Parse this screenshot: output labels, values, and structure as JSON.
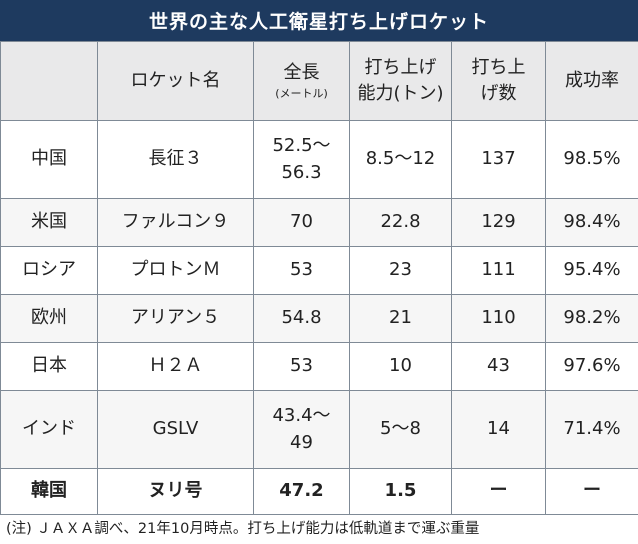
{
  "title": "世界の主な人工衛星打ち上げロケット",
  "headers": {
    "country": "",
    "rocket": "ロケット名",
    "length_l1": "全長",
    "length_l2": "(メートル)",
    "capacity_l1": "打ち上げ",
    "capacity_l2": "能力(トン)",
    "launches_l1": "打ち上",
    "launches_l2": "げ数",
    "success": "成功率"
  },
  "rows": [
    {
      "country": "中国",
      "rocket": "長征３",
      "length_l1": "52.5～",
      "length_l2": "56.3",
      "capacity": "8.5～12",
      "launches": "137",
      "success": "98.5%"
    },
    {
      "country": "米国",
      "rocket": "ファルコン９",
      "length_l1": "70",
      "length_l2": "",
      "capacity": "22.8",
      "launches": "129",
      "success": "98.4%"
    },
    {
      "country": "ロシア",
      "rocket": "プロトンＭ",
      "length_l1": "53",
      "length_l2": "",
      "capacity": "23",
      "launches": "111",
      "success": "95.4%"
    },
    {
      "country": "欧州",
      "rocket": "アリアン５",
      "length_l1": "54.8",
      "length_l2": "",
      "capacity": "21",
      "launches": "110",
      "success": "98.2%"
    },
    {
      "country": "日本",
      "rocket": "Ｈ２Ａ",
      "length_l1": "53",
      "length_l2": "",
      "capacity": "10",
      "launches": "43",
      "success": "97.6%"
    },
    {
      "country": "インド",
      "rocket": "GSLV",
      "length_l1": "43.4～",
      "length_l2": "49",
      "capacity": "5～8",
      "launches": "14",
      "success": "71.4%"
    },
    {
      "country": "韓国",
      "rocket": "ヌリ号",
      "length_l1": "47.2",
      "length_l2": "",
      "capacity": "1.5",
      "launches": "ー",
      "success": "ー"
    }
  ],
  "note": "(注) ＪＡＸＡ調べ、21年10月時点。打ち上げ能力は低軌道まで運ぶ重量"
}
